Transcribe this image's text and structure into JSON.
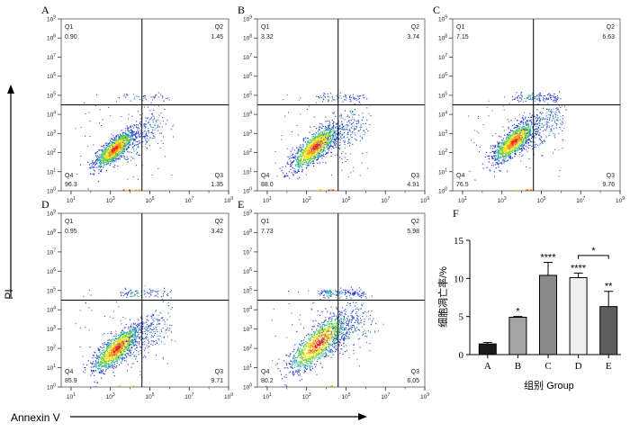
{
  "figure": {
    "y_axis_label": "PI",
    "x_axis_label": "Annexin V"
  },
  "chart_data": [
    {
      "type": "scatter",
      "panel": "A",
      "quadrants": {
        "Q1": "0.90",
        "Q2": "1.45",
        "Q3": "1.35",
        "Q4": "96.3"
      },
      "x_ticks": [
        "10^1",
        "10^3",
        "10^5",
        "10^7",
        "10^9"
      ],
      "y_ticks": [
        "10^0",
        "10^1",
        "10^2",
        "10^3",
        "10^4",
        "10^5",
        "10^6",
        "10^7",
        "10^8",
        "10^9"
      ],
      "axis_scale": "log",
      "xlim_log10": [
        0.5,
        9
      ],
      "ylim_log10": [
        0,
        9
      ],
      "gate_log10": {
        "x": 4.6,
        "y": 4.5
      }
    },
    {
      "type": "scatter",
      "panel": "B",
      "quadrants": {
        "Q1": "3.32",
        "Q2": "3.74",
        "Q3": "4.91",
        "Q4": "88.0"
      },
      "x_ticks": [
        "10^1",
        "10^3",
        "10^5",
        "10^7",
        "10^9"
      ],
      "y_ticks": [
        "10^0",
        "10^1",
        "10^2",
        "10^3",
        "10^4",
        "10^5",
        "10^6",
        "10^7",
        "10^8",
        "10^9"
      ],
      "axis_scale": "log",
      "xlim_log10": [
        0.5,
        9
      ],
      "ylim_log10": [
        0,
        9
      ],
      "gate_log10": {
        "x": 4.6,
        "y": 4.5
      }
    },
    {
      "type": "scatter",
      "panel": "C",
      "quadrants": {
        "Q1": "7.15",
        "Q2": "6.63",
        "Q3": "9.76",
        "Q4": "76.5"
      },
      "x_ticks": [
        "10^1",
        "10^3",
        "10^5",
        "10^7",
        "10^9"
      ],
      "y_ticks": [
        "10^0",
        "10^1",
        "10^2",
        "10^3",
        "10^4",
        "10^5",
        "10^6",
        "10^7",
        "10^8",
        "10^9"
      ],
      "axis_scale": "log",
      "xlim_log10": [
        0.5,
        9
      ],
      "ylim_log10": [
        0,
        9
      ],
      "gate_log10": {
        "x": 4.6,
        "y": 4.5
      }
    },
    {
      "type": "scatter",
      "panel": "D",
      "quadrants": {
        "Q1": "0.95",
        "Q2": "3.42",
        "Q3": "9.71",
        "Q4": "85.9"
      },
      "x_ticks": [
        "10^1",
        "10^3",
        "10^5",
        "10^7",
        "10^9"
      ],
      "y_ticks": [
        "10^0",
        "10^1",
        "10^2",
        "10^3",
        "10^4",
        "10^5",
        "10^6",
        "10^7",
        "10^8",
        "10^9"
      ],
      "axis_scale": "log",
      "xlim_log10": [
        0.5,
        9
      ],
      "ylim_log10": [
        0,
        9
      ],
      "gate_log10": {
        "x": 4.6,
        "y": 4.5
      }
    },
    {
      "type": "scatter",
      "panel": "E",
      "quadrants": {
        "Q1": "7.73",
        "Q2": "5.98",
        "Q3": "6.05",
        "Q4": "80.2"
      },
      "x_ticks": [
        "10^1",
        "10^3",
        "10^5",
        "10^7",
        "10^9"
      ],
      "y_ticks": [
        "10^0",
        "10^1",
        "10^2",
        "10^3",
        "10^4",
        "10^5",
        "10^6",
        "10^7",
        "10^8",
        "10^9"
      ],
      "axis_scale": "log",
      "xlim_log10": [
        0.5,
        9
      ],
      "ylim_log10": [
        0,
        9
      ],
      "gate_log10": {
        "x": 4.6,
        "y": 4.5
      }
    },
    {
      "type": "bar",
      "panel": "F",
      "title": "",
      "ylabel": "细胞凋亡率/%",
      "xlabel": "组别 Group",
      "categories": [
        "A",
        "B",
        "C",
        "D",
        "E"
      ],
      "values": [
        1.4,
        4.9,
        10.4,
        10.1,
        6.3
      ],
      "errors": [
        0.2,
        0.1,
        1.7,
        0.6,
        2.0
      ],
      "significance": [
        "",
        "*",
        "****",
        "****",
        "**"
      ],
      "comparisons": [
        {
          "between": [
            "D",
            "E"
          ],
          "label": "*"
        }
      ],
      "ylim": [
        0,
        15
      ],
      "yticks": [
        "0",
        "5",
        "10",
        "15"
      ],
      "colors": [
        "#1a1a1a",
        "#a5a5a5",
        "#8c8888",
        "#efefef",
        "#5e5e5e"
      ]
    }
  ]
}
